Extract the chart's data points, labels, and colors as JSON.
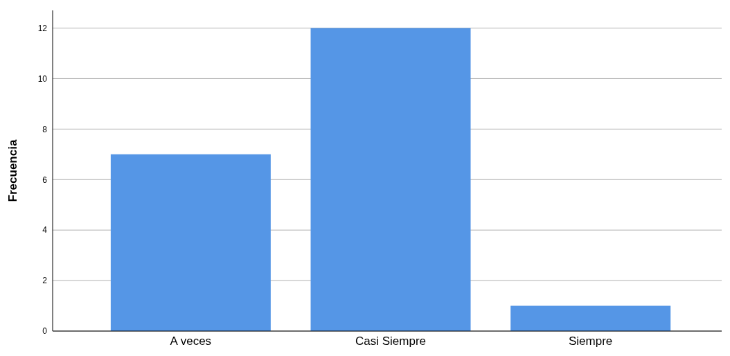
{
  "chart_data": {
    "type": "bar",
    "ylabel": "Frecuencia",
    "categories": [
      "A veces",
      "Casi Siempre",
      "Siempre"
    ],
    "values": [
      7,
      12,
      1
    ],
    "color": "#5596e6",
    "ylim": [
      0,
      12.7
    ],
    "yticks": [
      0,
      2,
      4,
      6,
      8,
      10,
      12
    ],
    "grid": "y"
  }
}
